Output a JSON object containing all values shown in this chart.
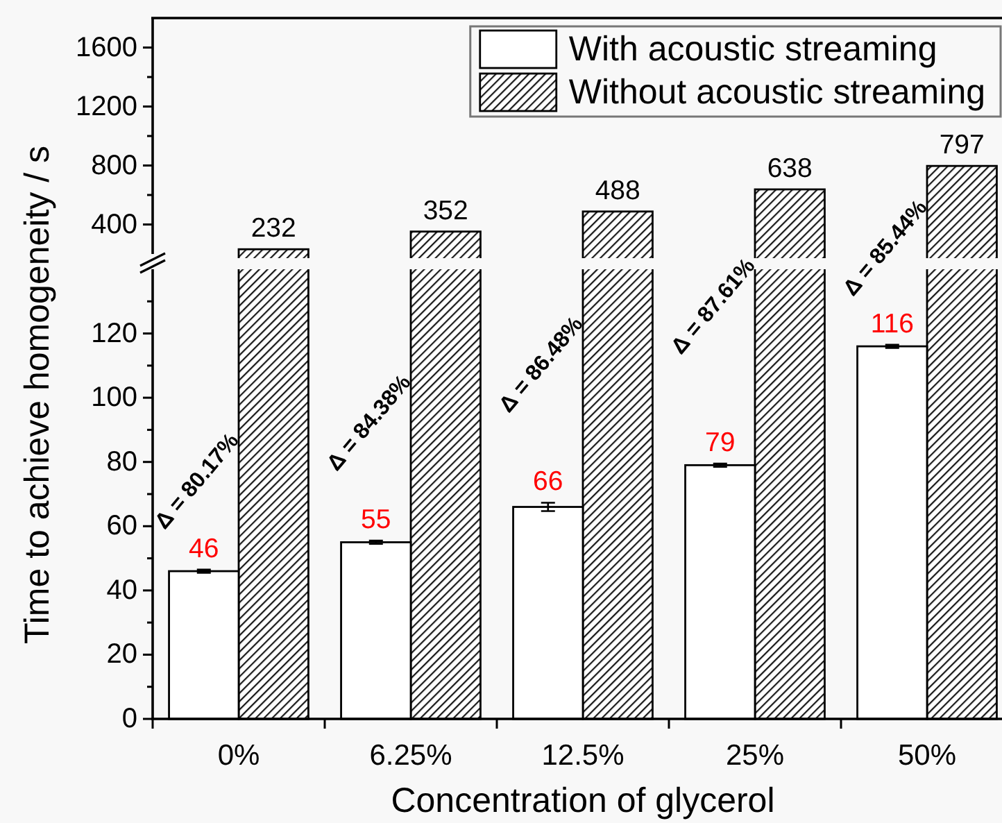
{
  "chart_data": [
    {
      "type": "bar",
      "categories": [
        "0%",
        "6.25%",
        "12.5%",
        "25%",
        "50%"
      ],
      "series": [
        {
          "name": "With acoustic streaming",
          "color": "#ffffff",
          "values": [
            null,
            null,
            null,
            null,
            null
          ]
        },
        {
          "name": "Without acoustic streaming",
          "color": "#000000",
          "values": [
            232,
            352,
            488,
            638,
            797
          ]
        }
      ],
      "ylim": [
        200,
        1800
      ],
      "yticks": [
        400,
        {
          "value": 600,
          "label": null
        },
        800,
        {
          "value": 1000,
          "label": null
        },
        1200,
        {
          "value": 1400,
          "label": null
        },
        1600
      ],
      "legend": "top right",
      "tick_labels": "y",
      "data_labels": true
    },
    {
      "type": "bar",
      "categories": [
        "0%",
        "6.25%",
        "12.5%",
        "25%",
        "50%"
      ],
      "series": [
        {
          "color": "#ffffff",
          "values": [
            46,
            55,
            66,
            79,
            116
          ],
          "errors": [
            0.5,
            0.5,
            1.3,
            0.5,
            0.5
          ]
        },
        {
          "values": [
            null,
            null,
            null,
            null,
            null
          ]
        }
      ],
      "ylim": [
        0,
        140
      ],
      "yticks": [
        0,
        {
          "value": 10,
          "label": null
        },
        20,
        {
          "value": 30,
          "label": null
        },
        40,
        {
          "value": 50,
          "label": null
        },
        60,
        {
          "value": 70,
          "label": null
        },
        80,
        {
          "value": 90,
          "label": null
        },
        100,
        {
          "value": 110,
          "label": null
        },
        120,
        {
          "value": 130,
          "label": null
        }
      ],
      "data_labels": true,
      "xlabel": "Concentration of glycerol",
      "ylabel": "Time to achieve homogeneity / s",
      "annotations": [
        "Δ = 80.17%",
        "Δ = 84.38%",
        "Δ = 86.48%",
        "Δ = 87.61%",
        "Δ = 85.44%"
      ]
    }
  ]
}
